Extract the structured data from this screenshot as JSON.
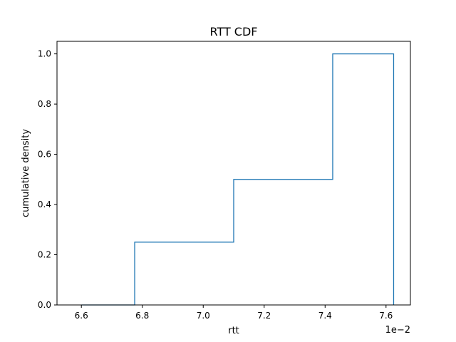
{
  "chart_data": {
    "type": "line",
    "title": "RTT CDF",
    "xlabel": "rtt",
    "ylabel": "cumulative density",
    "x_offset_label": "1e−2",
    "xlim": [
      6.52,
      7.68
    ],
    "ylim": [
      0.0,
      1.05
    ],
    "x_ticks": [
      6.6,
      6.8,
      7.0,
      7.2,
      7.4,
      7.6
    ],
    "x_tick_labels": [
      "6.6",
      "6.8",
      "7.0",
      "7.2",
      "7.4",
      "7.6"
    ],
    "y_ticks": [
      0.0,
      0.2,
      0.4,
      0.6,
      0.8,
      1.0
    ],
    "y_tick_labels": [
      "0.0",
      "0.2",
      "0.4",
      "0.6",
      "0.8",
      "1.0"
    ],
    "grid": false,
    "series": [
      {
        "style": "step",
        "color": "#1f77b4",
        "x": [
          6.6,
          6.775,
          6.775,
          7.1,
          7.1,
          7.425,
          7.425,
          7.625,
          7.625
        ],
        "y": [
          0.0,
          0.0,
          0.25,
          0.25,
          0.5,
          0.5,
          1.0,
          1.0,
          0.0
        ]
      }
    ]
  }
}
